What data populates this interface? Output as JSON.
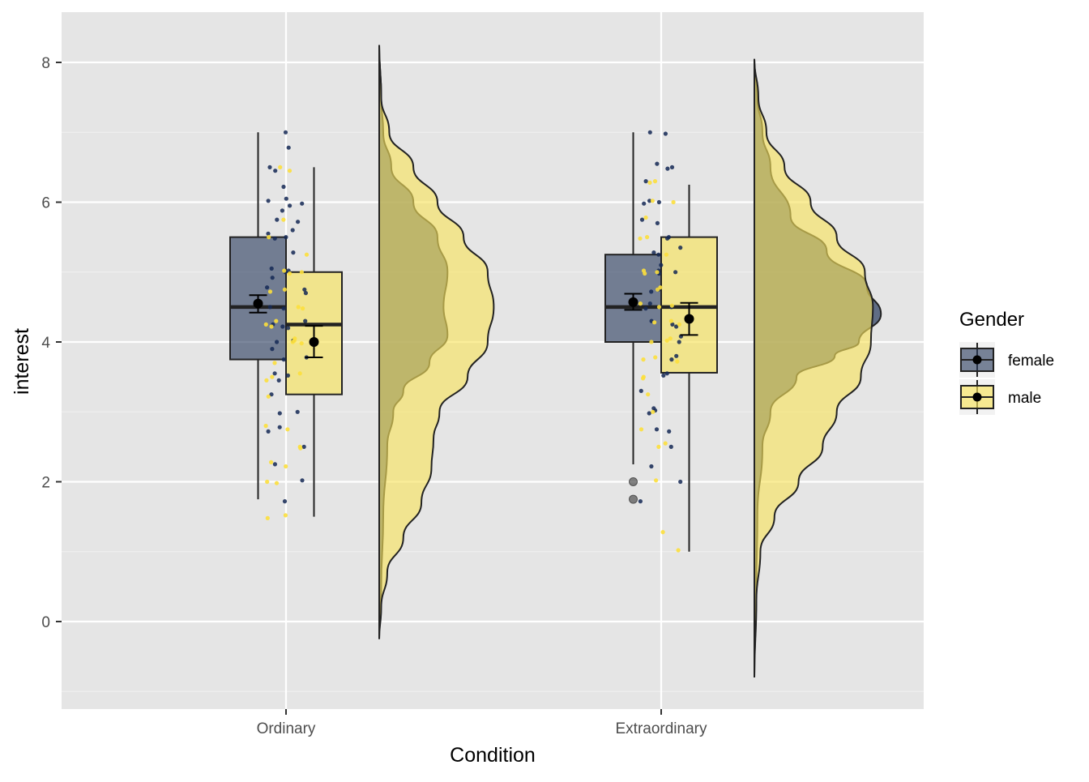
{
  "chart_data": {
    "type": "raincloud",
    "xlabel": "Condition",
    "ylabel": "interest",
    "categories": [
      "Ordinary",
      "Extraordinary"
    ],
    "ylim": [
      -1.25,
      8.7
    ],
    "yticks": [
      0,
      2,
      4,
      6,
      8
    ],
    "grid": true,
    "legend": {
      "title": "Gender",
      "position": "right"
    },
    "series": [
      {
        "name": "female",
        "color": "#2c3e5f",
        "box": [
          {
            "category": "Ordinary",
            "whisker_low": 1.75,
            "q1": 3.75,
            "median": 4.5,
            "q3": 5.5,
            "whisker_high": 7.0,
            "mean": 4.55,
            "se_low": 4.42,
            "se_high": 4.67,
            "outliers": []
          },
          {
            "category": "Extraordinary",
            "whisker_low": 2.25,
            "q1": 4.0,
            "median": 4.5,
            "q3": 5.25,
            "whisker_high": 7.0,
            "mean": 4.57,
            "se_low": 4.46,
            "se_high": 4.69,
            "outliers": [
              2.0,
              1.75
            ]
          }
        ],
        "density": [
          {
            "category": "Ordinary",
            "range": [
              -0.25,
              8.25
            ],
            "points": [
              [
                -0.25,
                0
              ],
              [
                0.5,
                0.01
              ],
              [
                1.5,
                0.02
              ],
              [
                2.5,
                0.04
              ],
              [
                3.0,
                0.07
              ],
              [
                3.3,
                0.12
              ],
              [
                3.7,
                0.25
              ],
              [
                4.1,
                0.34
              ],
              [
                4.5,
                0.32
              ],
              [
                5.0,
                0.34
              ],
              [
                5.5,
                0.29
              ],
              [
                6.0,
                0.17
              ],
              [
                6.5,
                0.06
              ],
              [
                7.0,
                0.02
              ],
              [
                7.5,
                0.01
              ],
              [
                8.25,
                0
              ]
            ]
          },
          {
            "category": "Extraordinary",
            "range": [
              -0.8,
              8.05
            ],
            "points": [
              [
                -0.8,
                0
              ],
              [
                0.5,
                0.01
              ],
              [
                1.5,
                0.015
              ],
              [
                2.5,
                0.04
              ],
              [
                3.0,
                0.08
              ],
              [
                3.5,
                0.21
              ],
              [
                3.8,
                0.4
              ],
              [
                4.0,
                0.52
              ],
              [
                4.4,
                0.63
              ],
              [
                4.8,
                0.56
              ],
              [
                5.3,
                0.36
              ],
              [
                5.8,
                0.18
              ],
              [
                6.5,
                0.08
              ],
              [
                7.0,
                0.04
              ],
              [
                7.5,
                0.015
              ],
              [
                8.05,
                0
              ]
            ]
          }
        ],
        "jitter": [
          {
            "category": "Ordinary",
            "values": [
              7.0,
              6.78,
              6.5,
              6.45,
              6.22,
              6.05,
              6.02,
              5.98,
              5.95,
              5.88,
              5.75,
              5.72,
              5.6,
              5.55,
              5.5,
              5.48,
              5.28,
              5.05,
              5.02,
              5.0,
              4.92,
              4.78,
              4.75,
              4.7,
              4.5,
              4.48,
              4.3,
              4.25,
              4.22,
              4.2,
              4.02,
              4.0,
              3.9,
              3.78,
              3.75,
              3.55,
              3.52,
              3.45,
              3.25,
              3.0,
              2.98,
              2.78,
              2.72,
              2.5,
              2.25,
              2.02,
              1.72
            ]
          },
          {
            "category": "Extraordinary",
            "values": [
              7.0,
              6.98,
              6.55,
              6.5,
              6.48,
              6.3,
              6.02,
              6.0,
              5.98,
              5.75,
              5.7,
              5.5,
              5.48,
              5.35,
              5.28,
              5.25,
              5.1,
              5.02,
              5.0,
              4.98,
              4.75,
              4.72,
              4.55,
              4.5,
              4.48,
              4.3,
              4.25,
              4.22,
              4.08,
              4.0,
              3.8,
              3.75,
              3.55,
              3.52,
              3.3,
              3.05,
              3.02,
              2.98,
              2.75,
              2.72,
              2.5,
              2.22,
              2.0,
              1.72
            ]
          }
        ]
      },
      {
        "name": "male",
        "color": "#f8e35c",
        "box": [
          {
            "category": "Ordinary",
            "whisker_low": 1.5,
            "q1": 3.25,
            "median": 4.25,
            "q3": 5.0,
            "whisker_high": 6.5,
            "mean": 4.0,
            "se_low": 3.78,
            "se_high": 4.23,
            "outliers": []
          },
          {
            "category": "Extraordinary",
            "whisker_low": 1.0,
            "q1": 3.56,
            "median": 4.5,
            "q3": 5.5,
            "whisker_high": 6.25,
            "mean": 4.33,
            "se_low": 4.1,
            "se_high": 4.56,
            "outliers": []
          }
        ],
        "density": [
          {
            "category": "Ordinary",
            "range": [
              -0.25,
              8.25
            ],
            "points": [
              [
                -0.25,
                0
              ],
              [
                0.2,
                0.01
              ],
              [
                0.7,
                0.04
              ],
              [
                1.2,
                0.12
              ],
              [
                1.7,
                0.21
              ],
              [
                2.2,
                0.26
              ],
              [
                2.6,
                0.27
              ],
              [
                3.0,
                0.3
              ],
              [
                3.5,
                0.44
              ],
              [
                4.0,
                0.54
              ],
              [
                4.5,
                0.57
              ],
              [
                5.0,
                0.54
              ],
              [
                5.5,
                0.42
              ],
              [
                6.0,
                0.29
              ],
              [
                6.5,
                0.17
              ],
              [
                7.0,
                0.05
              ],
              [
                7.5,
                0.01
              ],
              [
                8.25,
                0
              ]
            ]
          },
          {
            "category": "Extraordinary",
            "range": [
              -0.8,
              8.05
            ],
            "points": [
              [
                -0.8,
                0
              ],
              [
                0.3,
                0.01
              ],
              [
                1.0,
                0.03
              ],
              [
                1.5,
                0.1
              ],
              [
                2.0,
                0.22
              ],
              [
                2.5,
                0.34
              ],
              [
                3.0,
                0.41
              ],
              [
                3.5,
                0.53
              ],
              [
                4.0,
                0.58
              ],
              [
                4.5,
                0.59
              ],
              [
                5.0,
                0.55
              ],
              [
                5.5,
                0.41
              ],
              [
                6.0,
                0.28
              ],
              [
                6.5,
                0.15
              ],
              [
                7.0,
                0.06
              ],
              [
                7.5,
                0.02
              ],
              [
                8.05,
                0
              ]
            ]
          }
        ],
        "jitter": [
          {
            "category": "Ordinary",
            "values": [
              6.5,
              6.45,
              5.75,
              5.5,
              5.25,
              5.02,
              5.0,
              4.98,
              4.75,
              4.72,
              4.5,
              4.48,
              4.3,
              4.25,
              4.22,
              4.05,
              4.02,
              4.0,
              3.98,
              3.7,
              3.55,
              3.5,
              3.45,
              3.22,
              2.8,
              2.75,
              2.5,
              2.48,
              2.28,
              2.22,
              2.0,
              1.98,
              1.52,
              1.48
            ]
          },
          {
            "category": "Extraordinary",
            "values": [
              6.3,
              6.28,
              6.02,
              6.0,
              5.78,
              5.5,
              5.48,
              5.25,
              5.02,
              5.0,
              4.98,
              4.78,
              4.75,
              4.55,
              4.52,
              4.5,
              4.3,
              4.28,
              4.25,
              4.05,
              4.02,
              4.0,
              3.78,
              3.75,
              3.72,
              3.5,
              3.48,
              3.25,
              3.0,
              2.75,
              2.55,
              2.5,
              2.02,
              1.28,
              1.02
            ]
          }
        ]
      }
    ]
  }
}
